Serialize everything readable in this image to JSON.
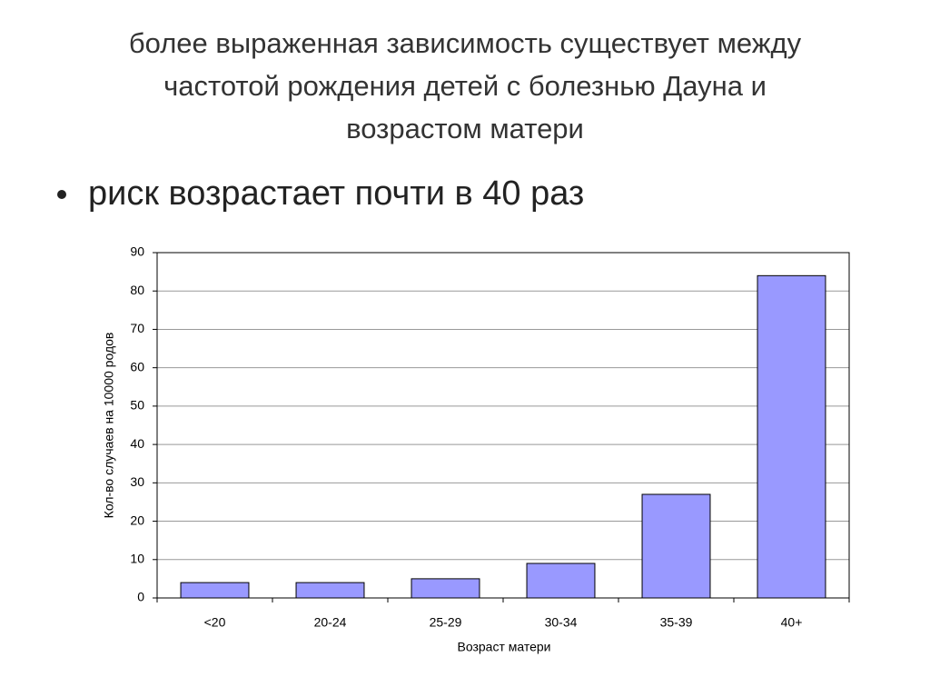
{
  "slide": {
    "title_lines": [
      "более выраженная зависимость существует между",
      "частотой рождения детей с болезнью Дауна и",
      "возрастом матери"
    ],
    "bullet": "риск возрастает почти в 40 раз"
  },
  "chart_data": {
    "type": "bar",
    "categories": [
      "<20",
      "20-24",
      "25-29",
      "30-34",
      "35-39",
      "40+"
    ],
    "values": [
      4,
      4,
      5,
      9,
      27,
      84
    ],
    "color": "#9999ff",
    "ylim": [
      0,
      90
    ],
    "yticks": [
      0,
      10,
      20,
      30,
      40,
      50,
      60,
      70,
      80,
      90
    ],
    "grid": true,
    "ylabel": "Кол-во случаев на 10000 родов",
    "xlabel": "Возраст матери"
  }
}
